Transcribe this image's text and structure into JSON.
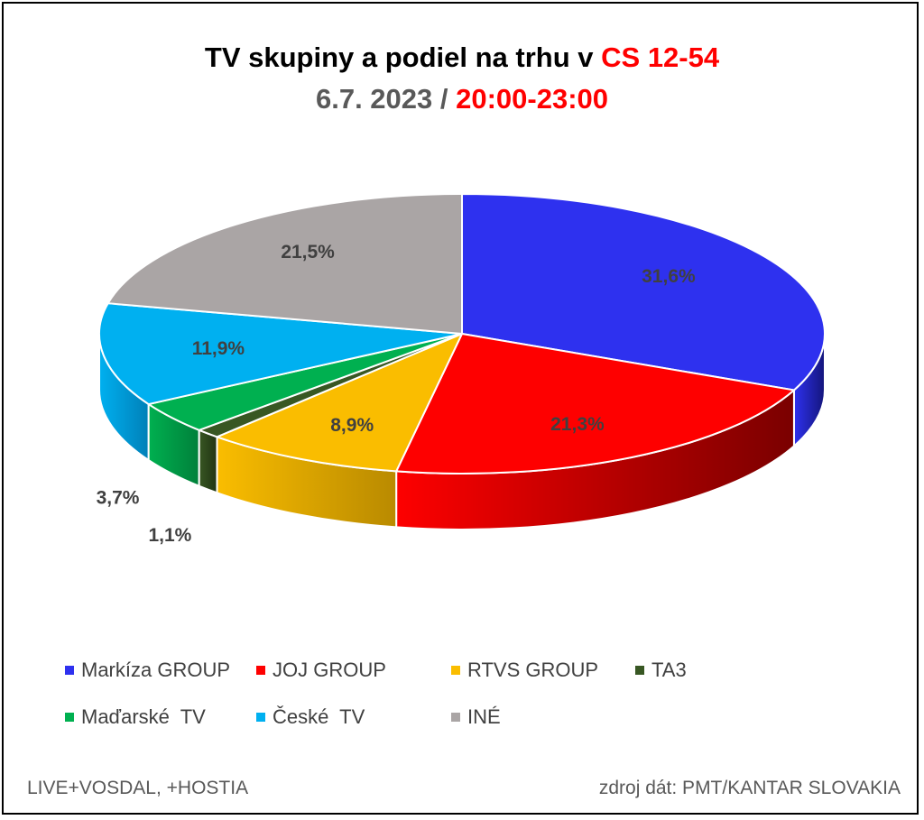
{
  "title": {
    "prefix": "TV skupiny a podiel na trhu v ",
    "highlight": "CS 12-54"
  },
  "subtitle": {
    "prefix": "6.7. 2023 / ",
    "highlight": "20:00-23:00"
  },
  "footer": {
    "left": "LIVE+VOSDAL, +HOSTIA",
    "right": "zdroj dát: PMT/KANTAR SLOVAKIA"
  },
  "colors": {
    "title_highlight": "#ff0000",
    "subtitle_text": "#595959"
  },
  "chart_data": {
    "type": "pie",
    "style": "3d-pie",
    "title": "TV skupiny a podiel na trhu v CS 12-54",
    "subtitle": "6.7. 2023 / 20:00-23:00",
    "legend_position": "bottom",
    "slices": [
      {
        "name": "Markíza GROUP",
        "value": 31.6,
        "label": "31,6%",
        "color": "#2e31ef",
        "side_color": "#14157a"
      },
      {
        "name": "JOJ GROUP",
        "value": 21.3,
        "label": "21,3%",
        "color": "#fe0000",
        "side_color": "#7a0000"
      },
      {
        "name": "RTVS GROUP",
        "value": 8.9,
        "label": "8,9%",
        "color": "#fabd00",
        "side_color": "#b98a00"
      },
      {
        "name": "TA3",
        "value": 1.1,
        "label": "1,1%",
        "color": "#385723",
        "side_color": "#203312"
      },
      {
        "name": "Maďarské  TV",
        "value": 3.7,
        "label": "3,7%",
        "color": "#00b050",
        "side_color": "#00803a"
      },
      {
        "name": "České  TV",
        "value": 11.9,
        "label": "11,9%",
        "color": "#00b0f0",
        "side_color": "#0080b8"
      },
      {
        "name": "INÉ",
        "value": 21.5,
        "label": "21,5%",
        "color": "#aaa5a5",
        "side_color": "#777272"
      }
    ]
  }
}
